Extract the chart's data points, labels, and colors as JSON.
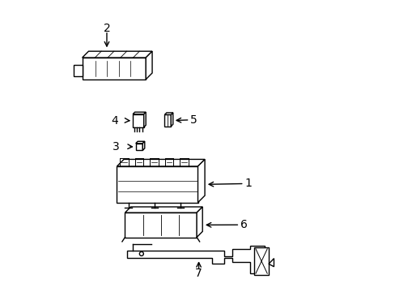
{
  "bg_color": "#ffffff",
  "line_color": "#000000",
  "line_width": 1.0,
  "fig_width": 4.89,
  "fig_height": 3.6,
  "dpi": 100
}
